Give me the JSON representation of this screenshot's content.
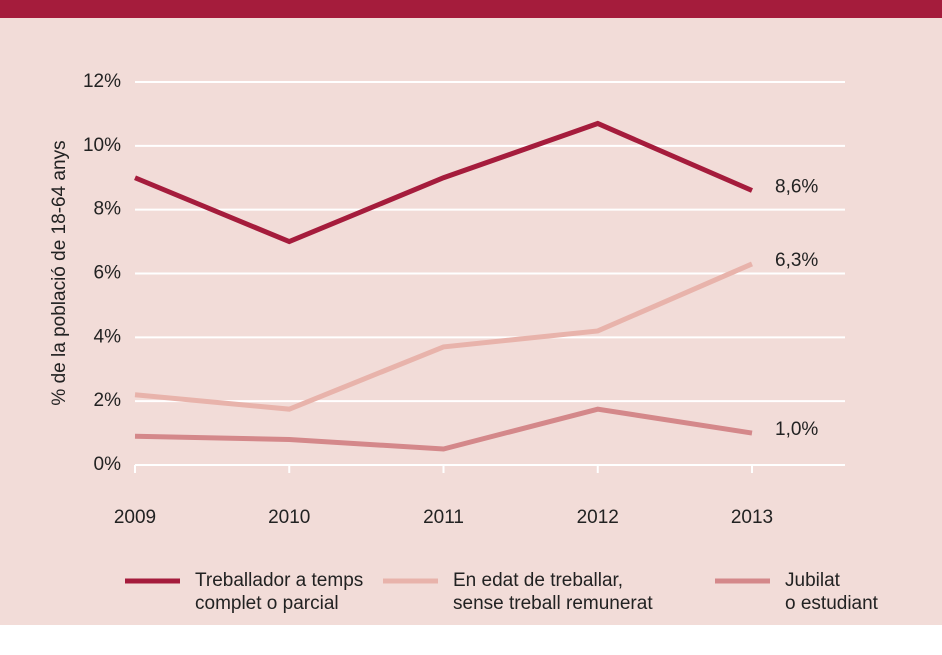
{
  "chart_data": {
    "type": "line",
    "y_label": "% de la població de 18-64 anys",
    "categories": [
      "2009",
      "2010",
      "2011",
      "2012",
      "2013"
    ],
    "series": [
      {
        "name": "Treballador a temps\ncomplet o parcial",
        "color": "#a51c3c",
        "values": [
          9.0,
          7.0,
          9.0,
          10.7,
          8.6
        ],
        "value_labels": [
          null,
          null,
          null,
          null,
          "8,6%"
        ]
      },
      {
        "name": "En edat de treballar,\nsense treball remunerat",
        "color": "#e8b3ab",
        "values": [
          2.2,
          1.75,
          3.7,
          4.2,
          6.3
        ],
        "value_labels": [
          null,
          null,
          null,
          null,
          "6,3%"
        ]
      },
      {
        "name": "Jubilat\no estudiant",
        "color": "#d4888a",
        "values": [
          0.9,
          0.8,
          0.5,
          1.75,
          1.0
        ],
        "value_labels": [
          null,
          null,
          null,
          null,
          "1,0%"
        ]
      }
    ],
    "ylim": [
      0,
      12
    ],
    "yticks": [
      {
        "value": 0,
        "label": "0%"
      },
      {
        "value": 2,
        "label": "2%"
      },
      {
        "value": 4,
        "label": "4%"
      },
      {
        "value": 6,
        "label": "6%"
      },
      {
        "value": 8,
        "label": "8%"
      },
      {
        "value": 10,
        "label": "10%"
      },
      {
        "value": 12,
        "label": "12%"
      }
    ],
    "grid": true
  }
}
